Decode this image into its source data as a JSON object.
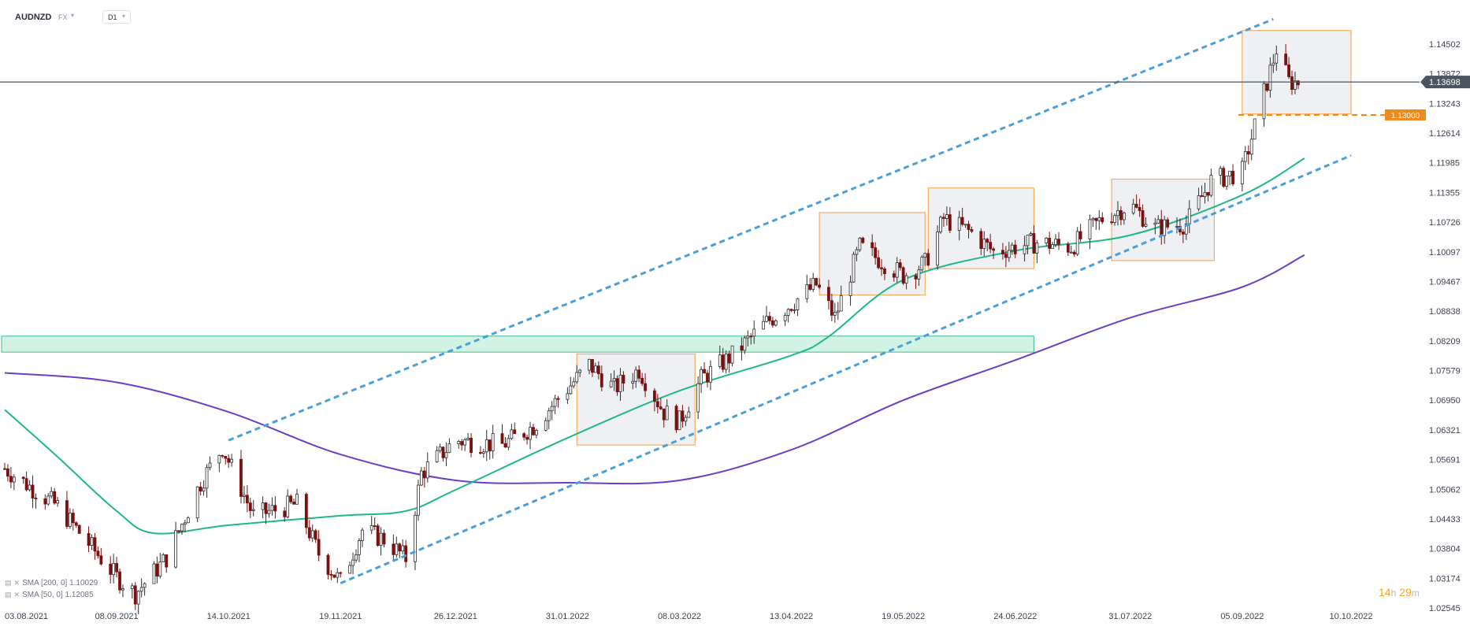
{
  "header": {
    "symbol": "AUDNZD",
    "exchange": "FX",
    "timeframe": "D1"
  },
  "legend": {
    "sma200": "SMA [200, 0] 1.10029",
    "sma50": "SMA [50, 0] 1.12085"
  },
  "timer": {
    "hours": "14",
    "h_unit": "h",
    "minutes": "29",
    "m_unit": "m"
  },
  "colors": {
    "candle_up": "#2e2e2e",
    "candle_down": "#7a1010",
    "sma200": "#6a3fc6",
    "sma50": "#1fb88a",
    "channel": "#4aa0d6",
    "box_stroke": "#f5a042",
    "box_fill": "#eef0f3",
    "zone_fill": "#d3f2e6",
    "zone_stroke": "#3ebd8d",
    "price_line": "#4a5561",
    "level_color": "#f08a1c"
  },
  "chart_data": {
    "type": "candlestick",
    "title": "",
    "timeframe": "D1",
    "x_tick_labels": [
      "03.08.2021",
      "08.09.2021",
      "14.10.2021",
      "19.11.2021",
      "26.12.2021",
      "31.01.2022",
      "08.03.2022",
      "13.04.2022",
      "19.05.2022",
      "24.06.2022",
      "31.07.2022",
      "05.09.2022",
      "10.10.2022"
    ],
    "y_tick_labels": [
      "1.14502",
      "1.13872",
      "1.13243",
      "1.12614",
      "1.11985",
      "1.11355",
      "1.10726",
      "1.10097",
      "1.09467",
      "1.08838",
      "1.08209",
      "1.07579",
      "1.06950",
      "1.06321",
      "1.05691",
      "1.05062",
      "1.04433",
      "1.03804",
      "1.03174",
      "1.02545"
    ],
    "ylim": [
      1.02545,
      1.14817
    ],
    "current_price": {
      "label": "1.13698",
      "value": 1.13698
    },
    "horizontal_level": {
      "label": "1.13000",
      "value": 1.13
    },
    "support_zone": {
      "from": "03.08.2021",
      "to": "30.06.2022",
      "low": 1.0797,
      "high": 1.0831
    },
    "channel_upper": {
      "start": [
        "14.10.2021",
        1.061
      ],
      "end": [
        "15.09.2022",
        1.1503
      ]
    },
    "channel_lower": {
      "start": [
        "19.11.2021",
        1.0307
      ],
      "end": [
        "10.10.2022",
        1.1214
      ]
    },
    "consolidation_boxes": [
      {
        "from": "03.02.2022",
        "to": "13.03.2022",
        "low": 1.06,
        "high": 1.0793
      },
      {
        "from": "22.04.2022",
        "to": "26.05.2022",
        "low": 1.0918,
        "high": 1.1093
      },
      {
        "from": "27.05.2022",
        "to": "30.06.2022",
        "low": 1.0974,
        "high": 1.1145
      },
      {
        "from": "25.07.2022",
        "to": "27.08.2022",
        "low": 1.0991,
        "high": 1.1164
      },
      {
        "from": "05.09.2022",
        "to": "10.10.2022",
        "low": 1.1302,
        "high": 1.1479
      }
    ],
    "series": [
      {
        "name": "SMA [200, 0] 1.10029",
        "color": "#6a3fc6",
        "points": [
          [
            "03.08.2021",
            1.0753
          ],
          [
            "08.09.2021",
            1.0733
          ],
          [
            "14.10.2021",
            1.067
          ],
          [
            "19.11.2021",
            1.058
          ],
          [
            "26.12.2021",
            1.0525
          ],
          [
            "31.01.2022",
            1.052
          ],
          [
            "08.03.2022",
            1.0525
          ],
          [
            "13.04.2022",
            1.059
          ],
          [
            "19.05.2022",
            1.0695
          ],
          [
            "24.06.2022",
            1.078
          ],
          [
            "31.07.2022",
            1.087
          ],
          [
            "05.09.2022",
            1.0935
          ],
          [
            "25.09.2022",
            1.1003
          ]
        ]
      },
      {
        "name": "SMA [50, 0] 1.12085",
        "color": "#1fb88a",
        "points": [
          [
            "03.08.2021",
            1.0675
          ],
          [
            "20.08.2021",
            1.0575
          ],
          [
            "08.09.2021",
            1.046
          ],
          [
            "20.09.2021",
            1.0413
          ],
          [
            "14.10.2021",
            1.043
          ],
          [
            "19.11.2021",
            1.045
          ],
          [
            "10.12.2021",
            1.046
          ],
          [
            "26.12.2021",
            1.0505
          ],
          [
            "31.01.2022",
            1.0615
          ],
          [
            "08.03.2022",
            1.0715
          ],
          [
            "13.04.2022",
            1.079
          ],
          [
            "25.04.2022",
            1.083
          ],
          [
            "19.05.2022",
            1.095
          ],
          [
            "24.06.2022",
            1.1012
          ],
          [
            "31.07.2022",
            1.1045
          ],
          [
            "05.09.2022",
            1.113
          ],
          [
            "25.09.2022",
            1.1208
          ]
        ]
      }
    ],
    "ohlc_summary": {
      "first_date": "03.08.2021",
      "last_date": "25.09.2022",
      "start_close": 1.055,
      "low": 1.0275,
      "low_date": "14.09.2021",
      "high": 1.147,
      "high_date": "16.09.2022",
      "last_close": 1.13698
    },
    "annotations": [
      "1.13000",
      "1.13698"
    ]
  }
}
